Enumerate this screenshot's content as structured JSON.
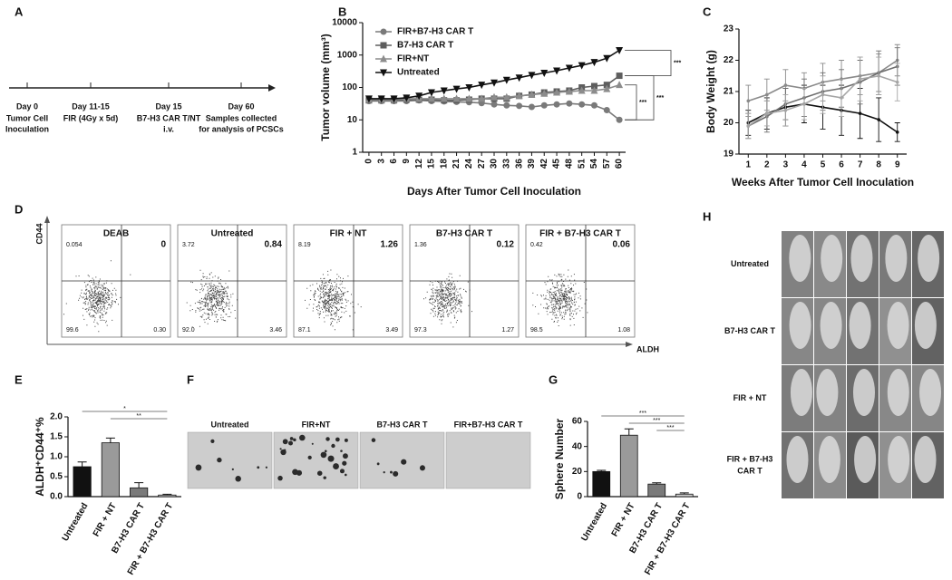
{
  "panel_a": {
    "letter": "A",
    "events": [
      {
        "day": "Day 0",
        "desc": [
          "Tumor Cell",
          "Inoculation"
        ]
      },
      {
        "day": "Day 11-15",
        "desc": [
          "FIR (4Gy x 5d)"
        ]
      },
      {
        "day": "Day 15",
        "desc": [
          "B7-H3 CAR T/NT",
          "i.v."
        ]
      },
      {
        "day": "Day 60",
        "desc": [
          "Samples collected",
          "for analysis of PCSCs"
        ]
      }
    ]
  },
  "chart_data": [
    {
      "type": "line",
      "panel": "B",
      "log": true,
      "x": [
        0,
        3,
        6,
        9,
        12,
        15,
        18,
        21,
        24,
        27,
        30,
        33,
        36,
        39,
        42,
        45,
        48,
        51,
        54,
        57,
        60
      ],
      "xlim": [
        -1.5,
        61.5
      ],
      "xticks": [
        0,
        3,
        6,
        9,
        12,
        15,
        18,
        21,
        24,
        27,
        30,
        33,
        36,
        39,
        42,
        45,
        48,
        51,
        54,
        57,
        60
      ],
      "ylim": [
        1,
        10000
      ],
      "yticks": [
        1,
        10,
        100,
        1000,
        10000
      ],
      "ylabel": "Tumor volume (mm³)",
      "xlabel": "Days After Tumor Cell Inoculation",
      "legend": "upper left",
      "series": [
        {
          "name": "FIR+B7-H3 CAR T",
          "color": "#7a7a7a",
          "marker": "circle",
          "values": [
            38,
            38,
            38,
            38,
            40,
            38,
            37,
            36,
            35,
            33,
            30,
            28,
            27,
            25,
            28,
            30,
            32,
            30,
            28,
            20,
            10
          ]
        },
        {
          "name": "B7-H3 CAR T",
          "color": "#5e5e5e",
          "marker": "square",
          "values": [
            40,
            40,
            40,
            42,
            42,
            42,
            40,
            40,
            42,
            45,
            45,
            45,
            55,
            60,
            70,
            75,
            80,
            100,
            110,
            120,
            230
          ]
        },
        {
          "name": "FIR+NT",
          "color": "#8c8c8c",
          "marker": "triangle",
          "values": [
            42,
            42,
            42,
            45,
            45,
            45,
            45,
            45,
            45,
            45,
            50,
            50,
            55,
            60,
            65,
            70,
            75,
            80,
            80,
            90,
            120
          ]
        },
        {
          "name": "Untreated",
          "color": "#111111",
          "marker": "triangle-down",
          "values": [
            45,
            45,
            45,
            48,
            55,
            70,
            80,
            90,
            100,
            120,
            140,
            170,
            200,
            240,
            280,
            330,
            400,
            480,
            600,
            800,
            1400
          ]
        }
      ],
      "annotations": [
        {
          "text": "***",
          "between": [
            3,
            1
          ]
        },
        {
          "text": "***",
          "between": [
            1,
            0
          ]
        },
        {
          "text": "***",
          "between": [
            2,
            0
          ]
        }
      ]
    },
    {
      "type": "line",
      "panel": "C",
      "x": [
        1,
        2,
        3,
        4,
        5,
        6,
        7,
        8,
        9
      ],
      "xlim": [
        0.5,
        9.5
      ],
      "xticks": [
        1,
        2,
        3,
        4,
        5,
        6,
        7,
        8,
        9
      ],
      "ylim": [
        19,
        23
      ],
      "yticks": [
        19,
        20,
        21,
        22,
        23
      ],
      "ylabel": "Body Weight (g)",
      "xlabel": "Weeks After Tumor Cell Inoculation",
      "series": [
        {
          "color": "#111111",
          "marker": "none",
          "values": [
            20.0,
            20.3,
            20.5,
            20.6,
            20.5,
            20.4,
            20.3,
            20.1,
            19.7
          ],
          "errors": [
            0.4,
            0.5,
            0.6,
            0.6,
            0.7,
            0.8,
            0.8,
            0.7,
            0.3
          ]
        },
        {
          "color": "#8a8a8a",
          "marker": "none",
          "values": [
            20.7,
            20.9,
            21.2,
            21.1,
            21.3,
            21.4,
            21.5,
            21.6,
            22.0
          ],
          "errors": [
            0.5,
            0.5,
            0.5,
            0.5,
            0.6,
            0.6,
            0.6,
            0.6,
            0.5
          ]
        },
        {
          "color": "#6e6e6e",
          "marker": "none",
          "values": [
            19.9,
            20.2,
            20.6,
            20.8,
            21.0,
            21.1,
            21.3,
            21.6,
            21.8
          ],
          "errors": [
            0.4,
            0.5,
            0.5,
            0.6,
            0.6,
            0.6,
            0.7,
            0.7,
            0.6
          ]
        },
        {
          "color": "#a5a5a5",
          "marker": "none",
          "values": [
            19.9,
            20.3,
            20.4,
            20.6,
            20.9,
            20.8,
            21.4,
            21.5,
            21.3
          ],
          "errors": [
            0.4,
            0.4,
            0.5,
            0.5,
            0.6,
            0.6,
            0.7,
            0.6,
            0.6
          ]
        }
      ]
    },
    {
      "type": "bar",
      "panel": "E",
      "categories": [
        "Untreated",
        "FIR + NT",
        "B7-H3 CAR T",
        "FIR + B7-H3 CAR T"
      ],
      "values": [
        0.75,
        1.35,
        0.22,
        0.04
      ],
      "errors": [
        0.12,
        0.12,
        0.13,
        0.02
      ],
      "colors": [
        "#111111",
        "#9a9a9a",
        "#7a7a7a",
        "#d0d0d0"
      ],
      "ylim": [
        0,
        2
      ],
      "yticks": [
        {
          "value": 0,
          "label": "0.0"
        },
        0.5,
        {
          "value": 1,
          "label": "1.0"
        },
        1.5,
        {
          "value": 2,
          "label": "2.0"
        }
      ],
      "ylabel": "ALDH⁺CD44⁺%",
      "annotations": [
        {
          "text": "*",
          "between": [
            0,
            3
          ]
        },
        {
          "text": "**",
          "between": [
            1,
            3
          ]
        }
      ]
    },
    {
      "type": "bar",
      "panel": "G",
      "categories": [
        "Untreated",
        "FIR + NT",
        "B7-H3 CAR T",
        "FIR + B7-H3 CAR T"
      ],
      "values": [
        20,
        49,
        10,
        2
      ],
      "errors": [
        1,
        5,
        1,
        1
      ],
      "colors": [
        "#111111",
        "#9a9a9a",
        "#7a7a7a",
        "#d0d0d0"
      ],
      "ylim": [
        0,
        60
      ],
      "yticks": [
        0,
        20,
        40,
        60
      ],
      "ylabel": "Sphere Number",
      "annotations": [
        {
          "text": "***",
          "between": [
            0,
            3
          ]
        },
        {
          "text": "***",
          "between": [
            1,
            3
          ]
        },
        {
          "text": "***",
          "between": [
            2,
            3
          ]
        }
      ]
    }
  ],
  "flow": {
    "letter": "D",
    "y_axis": "CD44",
    "x_axis": "ALDH",
    "plots": [
      {
        "title": "DEAB",
        "ul": "0.054",
        "ur": "0",
        "ll": "99.6",
        "lr": "0.30"
      },
      {
        "title": "Untreated",
        "ul": "3.72",
        "ur": "0.84",
        "ll": "92.0",
        "lr": "3.46"
      },
      {
        "title": "FIR + NT",
        "ul": "8.19",
        "ur": "1.26",
        "ll": "87.1",
        "lr": "3.49"
      },
      {
        "title": "B7-H3 CAR T",
        "ul": "1.36",
        "ur": "0.12",
        "ll": "97.3",
        "lr": "1.27"
      },
      {
        "title": "FIR + B7-H3 CAR T",
        "ul": "0.42",
        "ur": "0.06",
        "ll": "98.5",
        "lr": "1.08"
      }
    ]
  },
  "spheres": {
    "letter": "F",
    "images": [
      "Untreated",
      "FIR+NT",
      "B7-H3 CAR T",
      "FIR+B7-H3 CAR T"
    ]
  },
  "photos": {
    "letter": "H",
    "rows": [
      [
        "Untreated"
      ],
      [
        "B7-H3 CAR T"
      ],
      [
        "FIR + NT"
      ],
      [
        "FIR + B7-H3",
        "CAR T"
      ]
    ]
  }
}
